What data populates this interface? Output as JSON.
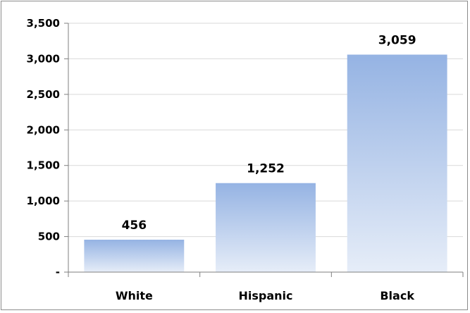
{
  "chart_data": {
    "type": "bar",
    "title": "",
    "xlabel": "",
    "ylabel": "",
    "categories": [
      "White",
      "Hispanic",
      "Black"
    ],
    "values": [
      456,
      1252,
      3059
    ],
    "data_labels": [
      "456",
      "1,252",
      "3,059"
    ],
    "ylim": [
      0,
      3500
    ],
    "y_ticks": [
      0,
      500,
      1000,
      1500,
      2000,
      2500,
      3000,
      3500
    ],
    "y_tick_labels": [
      "-",
      "500",
      "1,000",
      "1,500",
      "2,000",
      "2,500",
      "3,000",
      "3,500"
    ],
    "grid": true,
    "legend": "none",
    "colors": {
      "bar_top": "#95b3e3",
      "bar_bottom": "#e6edf8",
      "grid": "#d9d9d9",
      "axis": "#7f7f7f"
    }
  }
}
